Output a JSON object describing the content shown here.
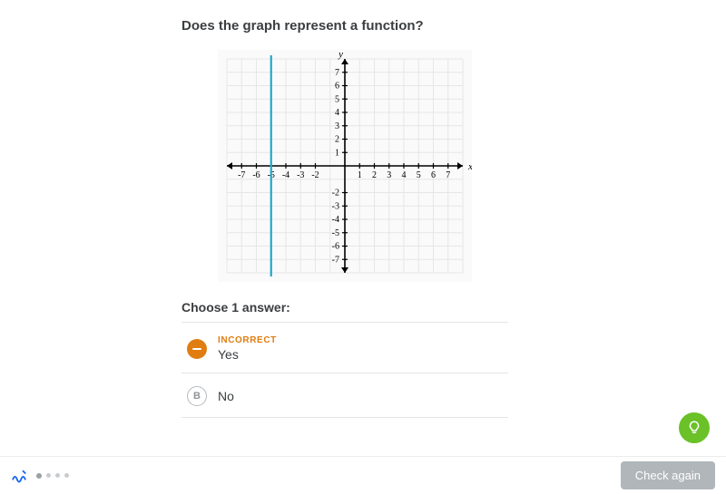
{
  "question": {
    "title": "Does the graph represent a function?"
  },
  "graph": {
    "type": "line-plot",
    "x_axis_label": "x",
    "y_axis_label": "y",
    "xlim": [
      -8,
      8
    ],
    "ylim": [
      -8,
      8
    ],
    "x_ticks": [
      -7,
      -6,
      -5,
      -4,
      -3,
      -2,
      1,
      2,
      3,
      4,
      5,
      6,
      7
    ],
    "y_ticks_pos": [
      1,
      2,
      3,
      4,
      5,
      6,
      7
    ],
    "y_ticks_neg": [
      -2,
      -3,
      -4,
      -5,
      -6,
      -7
    ],
    "grid_color": "#e6e6e6",
    "axis_color": "#000000",
    "background_color": "#fafafa",
    "tick_font_size": 10,
    "line": {
      "x": -5,
      "color": "#1fa9c9",
      "width": 2.2
    }
  },
  "prompt": "Choose 1 answer:",
  "answers": {
    "a": {
      "status": "INCORRECT",
      "text": "Yes",
      "badge_color": "#e07d10"
    },
    "b": {
      "letter": "B",
      "text": "No"
    }
  },
  "footer": {
    "progress_dots": 4,
    "active_dot_index": 0,
    "check_button": "Check again"
  },
  "hint_fab": {
    "color": "#6ac128"
  }
}
